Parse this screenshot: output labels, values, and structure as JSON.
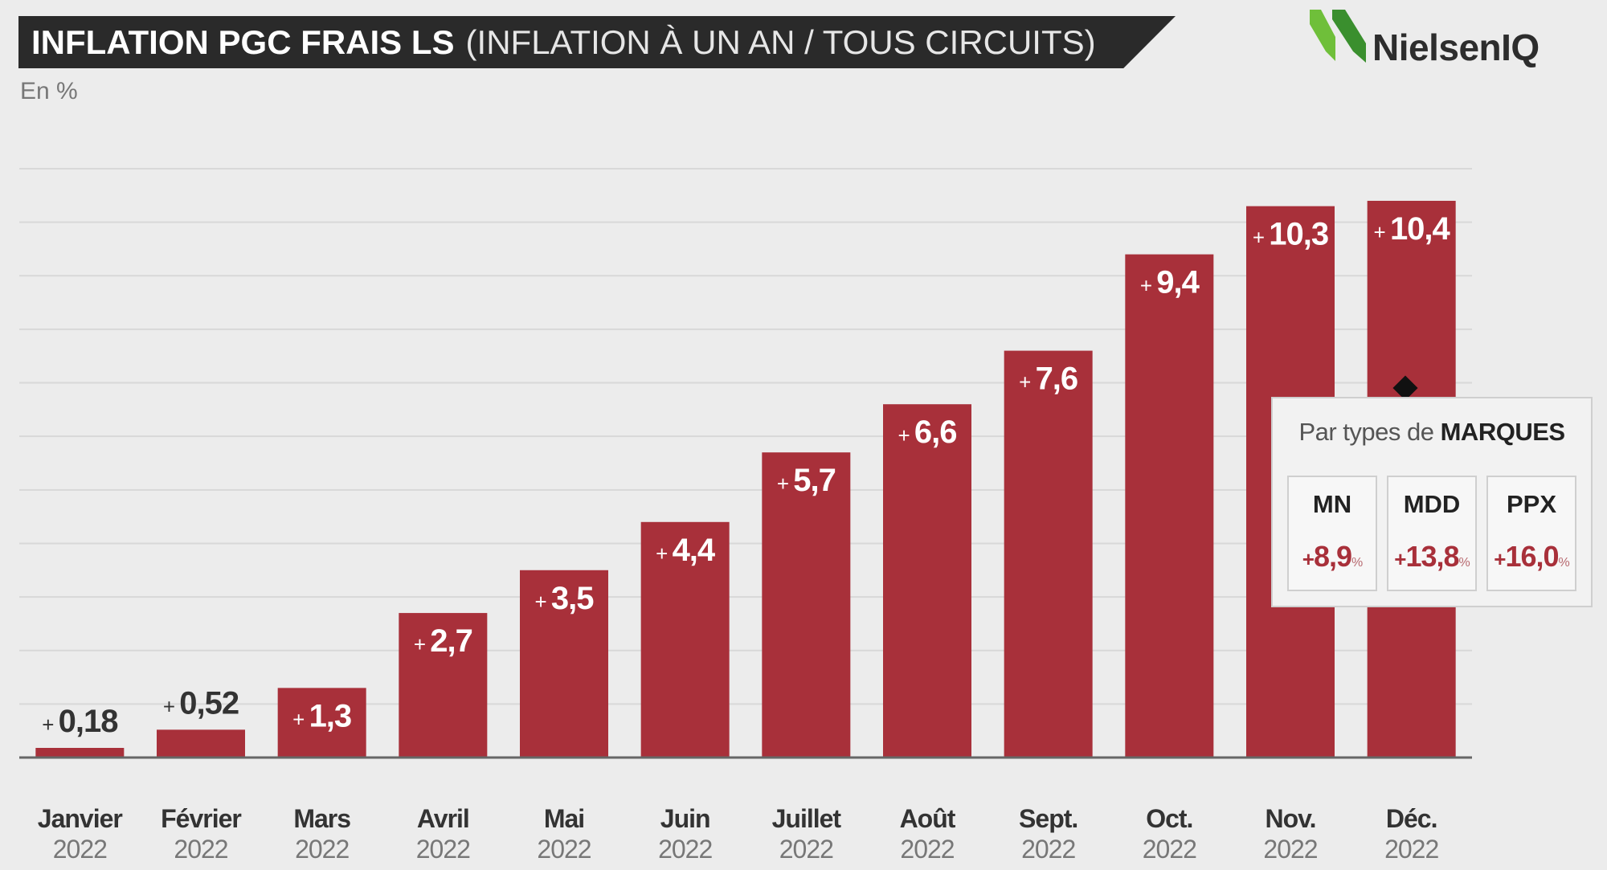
{
  "header": {
    "title_bold": "INFLATION PGC FRAIS LS",
    "title_rest": "(INFLATION À UN AN / TOUS CIRCUITS)",
    "unit": "En %"
  },
  "logo": {
    "text": "NielsenIQ",
    "colors": [
      "#3a8f2e",
      "#6fbf3a"
    ]
  },
  "colors": {
    "bar": "#a8303a",
    "grid": "#d8d8d8",
    "axis": "#666666",
    "label": "#333333",
    "year": "#777777"
  },
  "chart_data": {
    "type": "bar",
    "title": "INFLATION PGC FRAIS LS (INFLATION À UN AN / TOUS CIRCUITS)",
    "ylabel": "En %",
    "ylim": [
      0,
      11
    ],
    "grid": true,
    "categories": [
      "Janvier",
      "Février",
      "Mars",
      "Avril",
      "Mai",
      "Juin",
      "Juillet",
      "Août",
      "Sept.",
      "Oct.",
      "Nov.",
      "Déc."
    ],
    "years": [
      "2022",
      "2022",
      "2022",
      "2022",
      "2022",
      "2022",
      "2022",
      "2022",
      "2022",
      "2022",
      "2022",
      "2022"
    ],
    "values": [
      0.18,
      0.52,
      1.3,
      2.7,
      3.5,
      4.4,
      5.7,
      6.6,
      7.6,
      9.4,
      10.3,
      10.4
    ],
    "value_labels": [
      "0,18",
      "0,52",
      "1,3",
      "2,7",
      "3,5",
      "4,4",
      "5,7",
      "6,6",
      "7,6",
      "9,4",
      "10,3",
      "10,4"
    ],
    "label_prefix": "+"
  },
  "panel": {
    "title_prefix": "Par types de",
    "title_bold": "MARQUES",
    "items": [
      {
        "label": "MN",
        "sign": "+",
        "value": "8,9",
        "unit": "%"
      },
      {
        "label": "MDD",
        "sign": "+",
        "value": "13,8",
        "unit": "%"
      },
      {
        "label": "PPX",
        "sign": "+",
        "value": "16,0",
        "unit": "%"
      }
    ]
  }
}
